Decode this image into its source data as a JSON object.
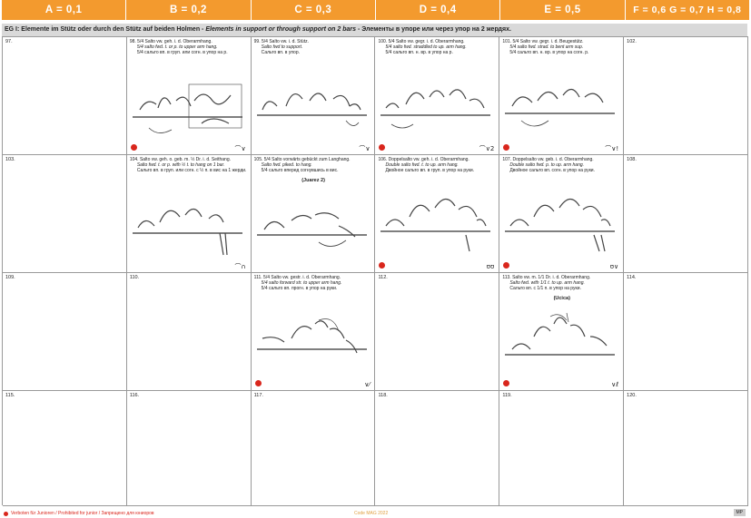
{
  "header": [
    "A = 0,1",
    "B = 0,2",
    "C = 0,3",
    "D = 0,4",
    "E = 0,5",
    "F = 0,6 G = 0,7 H = 0,8"
  ],
  "group": {
    "prefix": "EG I:",
    "de": "Elemente im Stütz oder durch den Stütz auf beiden Holmen -",
    "en": "Elements in support or through support on 2 bars",
    "ru": "- Элементы в упоре или через упор на 2 жердях."
  },
  "cells": [
    {
      "num": "97."
    },
    {
      "num": "98.",
      "t1": "5/4 Salto vw. geh. i. d. Oberarmhang.",
      "t2": "5/4 salto fwd. t. or p. to upper arm hang.",
      "t3": "5/4 сальто вп. в груп. или согн. в упор на р."
    },
    {
      "num": "99.",
      "t1": "5/4 Salto vw. i. d. Stütz.",
      "t2": "Salto fwd to support.",
      "t3": "Сальто вп. в упор."
    },
    {
      "num": "100.",
      "t1": "5/4 Salto vw. gegr. i. d. Oberarmhang.",
      "t2": "5/4 salto fwd. straddled to up. arm hang.",
      "t3": "5/4 сальто вп. н. вр. в упор на р."
    },
    {
      "num": "101.",
      "t1": "5/4 Salto vw. gegr. i. d. Beugestütz.",
      "t2": "5/4 salto fwd. strad. to bent arm sup.",
      "t3": "5/4 сальто вп. н. вр. в упор на согн. р."
    },
    {
      "num": "102."
    },
    {
      "num": "103."
    },
    {
      "num": "104.",
      "t1": "Salto vw. geh. o. geb. m. ½ Dr. i. d. Seithang.",
      "t2": "Salto fwd. t. or p. with ½ t. to hang on 1 bar.",
      "t3": "Сальто вп. в груп. или согн. с ½ п. в вис на 1 жерди."
    },
    {
      "num": "105.",
      "t1": "5/4 Salto vorwärts gebückt zum Langhang.",
      "t2": "Salto fwd. piked. to hang.",
      "t3": "5/4 сальто вперед согнувшись в вис.",
      "name": "(Juarez 2)"
    },
    {
      "num": "106.",
      "t1": "Doppelsalto vw. geh. i. d. Oberarmhang.",
      "t2": "Double salto fwd. t. to up. arm hang.",
      "t3": "Двойное сальто вп. в груп. в упор на руки."
    },
    {
      "num": "107.",
      "t1": "Doppelsalto vw. geb. i. d. Oberarmhang.",
      "t2": "Double salto fwd. p. to up. arm hang.",
      "t3": "Двойное сальто вп. согн. в упор на руки."
    },
    {
      "num": "108."
    },
    {
      "num": "109."
    },
    {
      "num": "110."
    },
    {
      "num": "111.",
      "t1": "5/4 Salto vw. gestr. i. d. Oberarmhang.",
      "t2": "5/4 salto forward str. to upper arm hang.",
      "t3": "5/4 сальто вп. прогн. в упор на руки."
    },
    {
      "num": "112."
    },
    {
      "num": "113.",
      "t1": "Salto vw. m. 1/1 Dr. i. d. Oberarmhang.",
      "t2": "Salto fwd. with 1/1 t. to up. arm hang.",
      "t3": "Сальто вп. с 1/1 п. в упор на руки.",
      "name": "(Ucica)"
    },
    {
      "num": "114."
    },
    {
      "num": "115."
    },
    {
      "num": "116."
    },
    {
      "num": "117."
    },
    {
      "num": "118."
    },
    {
      "num": "119."
    },
    {
      "num": "120."
    }
  ],
  "footer": {
    "note": "Verboten für Junioren / Prohibited for junior / Запрещено для юниоров",
    "code": "Code MAG 2022",
    "page": "MP"
  }
}
